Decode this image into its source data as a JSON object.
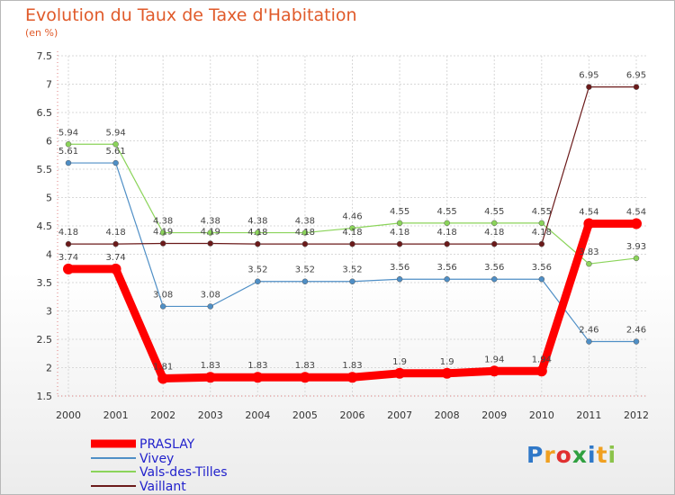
{
  "chart_data": {
    "type": "line",
    "title": "Evolution du Taux de Taxe d'Habitation",
    "subtitle": "(en %)",
    "categories": [
      "2000",
      "2001",
      "2002",
      "2003",
      "2004",
      "2005",
      "2006",
      "2007",
      "2008",
      "2009",
      "2010",
      "2011",
      "2012"
    ],
    "ylim": [
      1.5,
      7.5
    ],
    "yticks": [
      "1.5",
      "2",
      "2.5",
      "3",
      "3.5",
      "4",
      "4.5",
      "5",
      "5.5",
      "6",
      "6.5",
      "7",
      "7.5"
    ],
    "grid": true,
    "legend_placement": "bottom-left",
    "series": [
      {
        "name": "PRASLAY",
        "color": "#ff0000",
        "values": [
          3.74,
          3.74,
          1.81,
          1.83,
          1.83,
          1.83,
          1.83,
          1.9,
          1.9,
          1.94,
          1.94,
          4.54,
          4.54
        ],
        "labels": [
          "3.74",
          "3.74",
          "1.81",
          "1.83",
          "1.83",
          "1.83",
          "1.83",
          "1.9",
          "1.9",
          "1.94",
          "1.94",
          "4.54",
          "4.54"
        ]
      },
      {
        "name": "Vivey",
        "color": "#4f8fc6",
        "values": [
          5.61,
          5.61,
          3.08,
          3.08,
          3.52,
          3.52,
          3.52,
          3.56,
          3.56,
          3.56,
          3.56,
          2.46,
          2.46
        ],
        "labels": [
          "5.61",
          "5.61",
          "3.08",
          "3.08",
          "3.52",
          "3.52",
          "3.52",
          "3.56",
          "3.56",
          "3.56",
          "3.56",
          "2.46",
          "2.46"
        ]
      },
      {
        "name": "Vals-des-Tilles",
        "color": "#8bd45a",
        "values": [
          5.94,
          5.94,
          4.38,
          4.38,
          4.38,
          4.38,
          4.46,
          4.55,
          4.55,
          4.55,
          4.55,
          3.83,
          3.93
        ],
        "labels": [
          "5.94",
          "5.94",
          "4.38",
          "4.38",
          "4.38",
          "4.38",
          "4.46",
          "4.55",
          "4.55",
          "4.55",
          "4.55",
          "3.83",
          "3.93"
        ]
      },
      {
        "name": "Vaillant",
        "color": "#6b1a1a",
        "values": [
          4.18,
          4.18,
          4.19,
          4.19,
          4.18,
          4.18,
          4.18,
          4.18,
          4.18,
          4.18,
          4.18,
          6.95,
          6.95
        ],
        "labels": [
          "4.18",
          "4.18",
          "4.19",
          "4.19",
          "4.18",
          "4.18",
          "4.18",
          "4.18",
          "4.18",
          "4.18",
          "4.18",
          "6.95",
          "6.95"
        ]
      }
    ]
  },
  "logo": {
    "text": "Proxiti",
    "letters": [
      "P",
      "r",
      "o",
      "x",
      "i",
      "t",
      "i"
    ],
    "colors": [
      "#2f78c8",
      "#f0a020",
      "#e03030",
      "#30a040",
      "#2f78c8",
      "#f0a020",
      "#8bc34a"
    ]
  }
}
